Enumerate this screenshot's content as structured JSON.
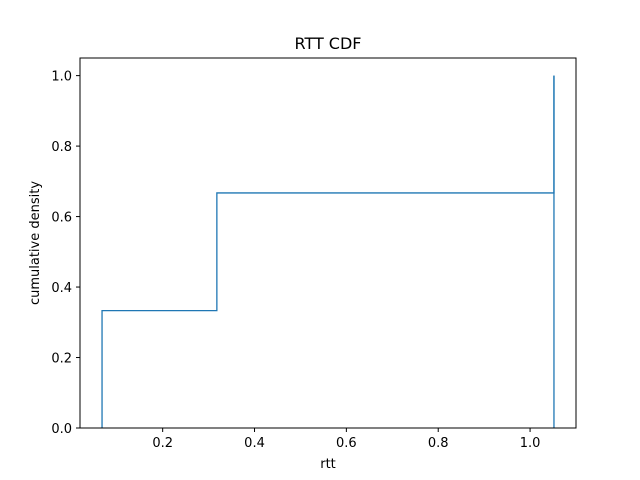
{
  "chart_data": {
    "type": "line",
    "title": "RTT CDF",
    "xlabel": "rtt",
    "ylabel": "cumulative density",
    "xlim": [
      0.02,
      1.1
    ],
    "ylim": [
      0.0,
      1.05
    ],
    "xticks": [
      0.2,
      0.4,
      0.6,
      0.8,
      1.0
    ],
    "yticks": [
      0.0,
      0.2,
      0.4,
      0.6,
      0.8,
      1.0
    ],
    "grid": false,
    "legend": "none",
    "line_color": "#1f77b4",
    "series": [
      {
        "step": "post",
        "x": [
          0.068,
          0.068,
          0.318,
          0.318,
          1.052,
          1.052
        ],
        "y": [
          0.0,
          0.333,
          0.333,
          0.667,
          0.667,
          1.0
        ]
      },
      {
        "x": [
          1.052,
          1.052
        ],
        "y": [
          0.0,
          1.0
        ]
      }
    ]
  }
}
